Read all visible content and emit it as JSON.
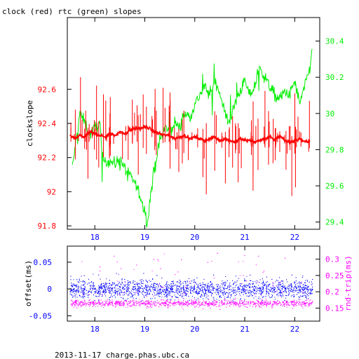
{
  "title": "clock (red) rtc (green) slopes",
  "footer": "2013-11-17 charge.phas.ubc.ca",
  "chart_data": [
    {
      "type": "line",
      "title": "clock (red) rtc (green) slopes",
      "xlabel": "",
      "xlim": [
        17.45,
        22.5
      ],
      "xticks": [
        "18",
        "19",
        "20",
        "21",
        "22"
      ],
      "ylabel_left": "clockslope",
      "ylim_left": [
        91.78,
        93.02
      ],
      "yticks_left": [
        "91.8",
        "92",
        "92.2",
        "92.4",
        "92.6"
      ],
      "ylim_right": [
        29.36,
        30.53
      ],
      "yticks_right": [
        "29.4",
        "29.6",
        "29.8",
        "30",
        "30.2",
        "30.4"
      ],
      "colors": {
        "clock": "#ff0000",
        "rtc": "#00ee00",
        "left_axis": "#ff0000",
        "right_axis": "#00ee00"
      },
      "series": [
        {
          "name": "clock",
          "axis": "left",
          "x": [
            17.5,
            17.6,
            17.7,
            17.8,
            17.9,
            18.0,
            18.1,
            18.2,
            18.3,
            18.4,
            18.5,
            18.6,
            18.7,
            18.8,
            18.9,
            19.0,
            19.1,
            19.2,
            19.3,
            19.4,
            19.5,
            19.6,
            19.7,
            19.8,
            19.9,
            20.0,
            20.1,
            20.2,
            20.3,
            20.4,
            20.5,
            20.6,
            20.7,
            20.8,
            20.9,
            21.0,
            21.1,
            21.2,
            21.3,
            21.4,
            21.5,
            21.6,
            21.7,
            21.8,
            21.9,
            22.0,
            22.1,
            22.2,
            22.3
          ],
          "y": [
            92.33,
            92.31,
            92.33,
            92.32,
            92.35,
            92.34,
            92.33,
            92.32,
            92.34,
            92.33,
            92.35,
            92.34,
            92.36,
            92.37,
            92.37,
            92.38,
            92.37,
            92.35,
            92.34,
            92.33,
            92.33,
            92.31,
            92.32,
            92.33,
            92.31,
            92.32,
            92.31,
            92.3,
            92.31,
            92.32,
            92.3,
            92.31,
            92.3,
            92.29,
            92.31,
            92.3,
            92.3,
            92.29,
            92.3,
            92.31,
            92.32,
            92.3,
            92.33,
            92.3,
            92.29,
            92.3,
            92.31,
            92.29,
            92.3
          ]
        },
        {
          "name": "rtc",
          "axis": "right",
          "x": [
            17.55,
            17.6,
            17.7,
            17.8,
            17.9,
            18.0,
            18.1,
            18.15,
            18.2,
            18.3,
            18.4,
            18.5,
            18.6,
            18.7,
            18.8,
            18.9,
            19.0,
            19.05,
            19.1,
            19.2,
            19.3,
            19.4,
            19.5,
            19.6,
            19.7,
            19.8,
            19.9,
            20.0,
            20.1,
            20.2,
            20.3,
            20.4,
            20.5,
            20.6,
            20.7,
            20.8,
            20.9,
            21.0,
            21.1,
            21.2,
            21.3,
            21.4,
            21.5,
            21.6,
            21.7,
            21.8,
            21.9,
            22.0,
            22.1,
            22.2,
            22.3,
            22.35
          ],
          "y": [
            29.7,
            29.8,
            30.0,
            29.95,
            29.88,
            29.92,
            29.95,
            29.75,
            29.73,
            29.74,
            29.72,
            29.75,
            29.7,
            29.65,
            29.62,
            29.55,
            29.45,
            29.4,
            29.52,
            29.7,
            29.85,
            29.92,
            29.9,
            29.95,
            29.92,
            30.0,
            29.98,
            30.05,
            30.1,
            30.15,
            30.1,
            30.18,
            30.12,
            30.0,
            29.95,
            30.05,
            30.12,
            30.18,
            30.1,
            30.15,
            30.25,
            30.2,
            30.15,
            30.1,
            30.08,
            30.12,
            30.1,
            30.18,
            30.05,
            30.15,
            30.25,
            30.35
          ]
        }
      ]
    },
    {
      "type": "scatter",
      "xlim": [
        17.45,
        22.5
      ],
      "xticks": [
        "18",
        "19",
        "20",
        "21",
        "22"
      ],
      "ylabel_left": "offset(ms)",
      "ylim_left": [
        -0.06,
        0.08
      ],
      "yticks_left": [
        "-0.05",
        "0",
        "0.05"
      ],
      "ylabel_right": "rnd-trip(ms)",
      "ylim_right": [
        0.11,
        0.34
      ],
      "yticks_right": [
        "0.15",
        "0.2",
        "0.25",
        "0.3"
      ],
      "colors": {
        "offset": "#0000ff",
        "rndtrip": "#ff00ff",
        "left_axis": "#0000ff",
        "right_axis": "#ff00ff"
      },
      "series": [
        {
          "name": "offset",
          "axis": "left",
          "center": 0.0,
          "spread": 0.018,
          "outlier_max": 0.03
        },
        {
          "name": "rnd-trip",
          "axis": "right",
          "center": 0.17,
          "spread": 0.02,
          "outlier_max": 0.32
        }
      ]
    }
  ]
}
